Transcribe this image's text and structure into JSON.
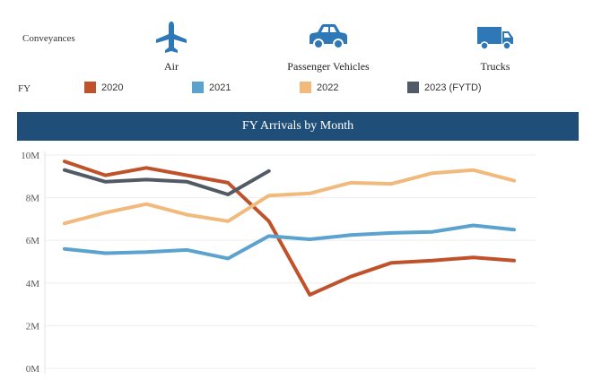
{
  "conveyances": {
    "label": "Conveyances",
    "items": [
      {
        "name": "Air",
        "icon": "airplane-icon"
      },
      {
        "name": "Passenger Vehicles",
        "icon": "car-icon"
      },
      {
        "name": "Trucks",
        "icon": "truck-icon"
      }
    ],
    "icon_color": "#2f78b7"
  },
  "legend": {
    "label": "FY",
    "items": [
      {
        "name": "2020",
        "color": "#c0522b"
      },
      {
        "name": "2021",
        "color": "#5ba2cf"
      },
      {
        "name": "2022",
        "color": "#f2b97c"
      },
      {
        "name": "2023 (FYTD)",
        "color": "#525a66"
      }
    ]
  },
  "chart_data": {
    "type": "line",
    "title": "FY Arrivals by Month",
    "title_bg": "#1f4e79",
    "ylim": [
      0,
      10000000
    ],
    "yticks": [
      "0M",
      "2M",
      "4M",
      "6M",
      "8M",
      "10M"
    ],
    "grid": true,
    "series": [
      {
        "name": "2020",
        "color": "#c0522b",
        "values": [
          9.7,
          9.05,
          9.4,
          9.05,
          8.7,
          6.9,
          3.45,
          4.3,
          4.95,
          5.05,
          5.2,
          5.05
        ]
      },
      {
        "name": "2021",
        "color": "#5ba2cf",
        "values": [
          5.6,
          5.4,
          5.45,
          5.55,
          5.15,
          6.2,
          6.05,
          6.25,
          6.35,
          6.4,
          6.7,
          6.5
        ]
      },
      {
        "name": "2022",
        "color": "#f2b97c",
        "values": [
          6.8,
          7.3,
          7.7,
          7.2,
          6.9,
          8.1,
          8.2,
          8.7,
          8.65,
          9.15,
          9.3,
          8.8
        ]
      },
      {
        "name": "2023 (FYTD)",
        "color": "#525a66",
        "values": [
          9.3,
          8.75,
          8.85,
          8.75,
          8.15,
          9.25
        ]
      }
    ],
    "unit_scale": 1000000
  }
}
